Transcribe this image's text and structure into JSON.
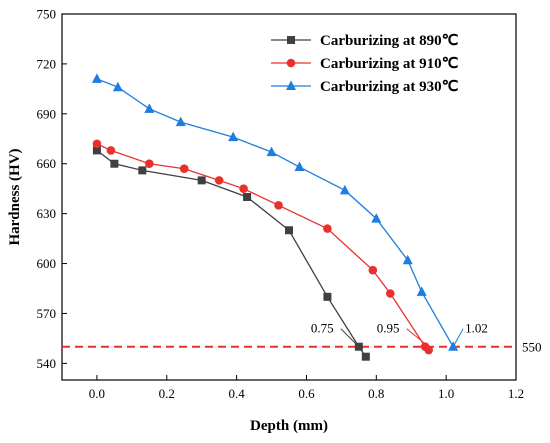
{
  "chart_data": {
    "type": "line",
    "title": "",
    "xlabel": "Depth (mm)",
    "ylabel": "Hardness (HV)",
    "xlim": [
      -0.1,
      1.2
    ],
    "ylim": [
      530,
      750
    ],
    "xticks": [
      0.0,
      0.2,
      0.4,
      0.6,
      0.8,
      1.0,
      1.2
    ],
    "xtick_labels": [
      "0.0",
      "0.2",
      "0.4",
      "0.6",
      "0.8",
      "1.0",
      "1.2"
    ],
    "yticks": [
      540,
      570,
      600,
      630,
      660,
      690,
      720,
      750
    ],
    "ytick_labels": [
      "540",
      "570",
      "600",
      "630",
      "660",
      "690",
      "720",
      "750"
    ],
    "legend_position": "top-right",
    "grid": false,
    "series": [
      {
        "name": "Carburizing at 890℃",
        "color": "#404040",
        "marker": "square",
        "x": [
          0.0,
          0.05,
          0.13,
          0.3,
          0.43,
          0.55,
          0.66,
          0.75,
          0.77
        ],
        "y": [
          668,
          660,
          656,
          650,
          640,
          620,
          580,
          550,
          544
        ]
      },
      {
        "name": "Carburizing at 910℃",
        "color": "#e8312f",
        "marker": "circle",
        "x": [
          0.0,
          0.04,
          0.15,
          0.25,
          0.35,
          0.42,
          0.52,
          0.66,
          0.79,
          0.84,
          0.94,
          0.95
        ],
        "y": [
          672,
          668,
          660,
          657,
          650,
          645,
          635,
          621,
          596,
          582,
          550,
          548
        ]
      },
      {
        "name": "Carburizing at 930℃",
        "color": "#1e7de0",
        "marker": "triangle",
        "x": [
          0.0,
          0.06,
          0.15,
          0.24,
          0.39,
          0.5,
          0.58,
          0.71,
          0.8,
          0.89,
          0.93,
          1.02
        ],
        "y": [
          711,
          706,
          693,
          685,
          676,
          667,
          658,
          644,
          627,
          602,
          583,
          550
        ]
      }
    ],
    "reference_line": {
      "y": 550,
      "label": "550",
      "color": "#e8312f",
      "style": "dashed"
    },
    "annotations": [
      {
        "text": "0.75",
        "x": 0.75,
        "y": 550
      },
      {
        "text": "0.95",
        "x": 0.95,
        "y": 550
      },
      {
        "text": "1.02",
        "x": 1.02,
        "y": 550
      }
    ]
  }
}
